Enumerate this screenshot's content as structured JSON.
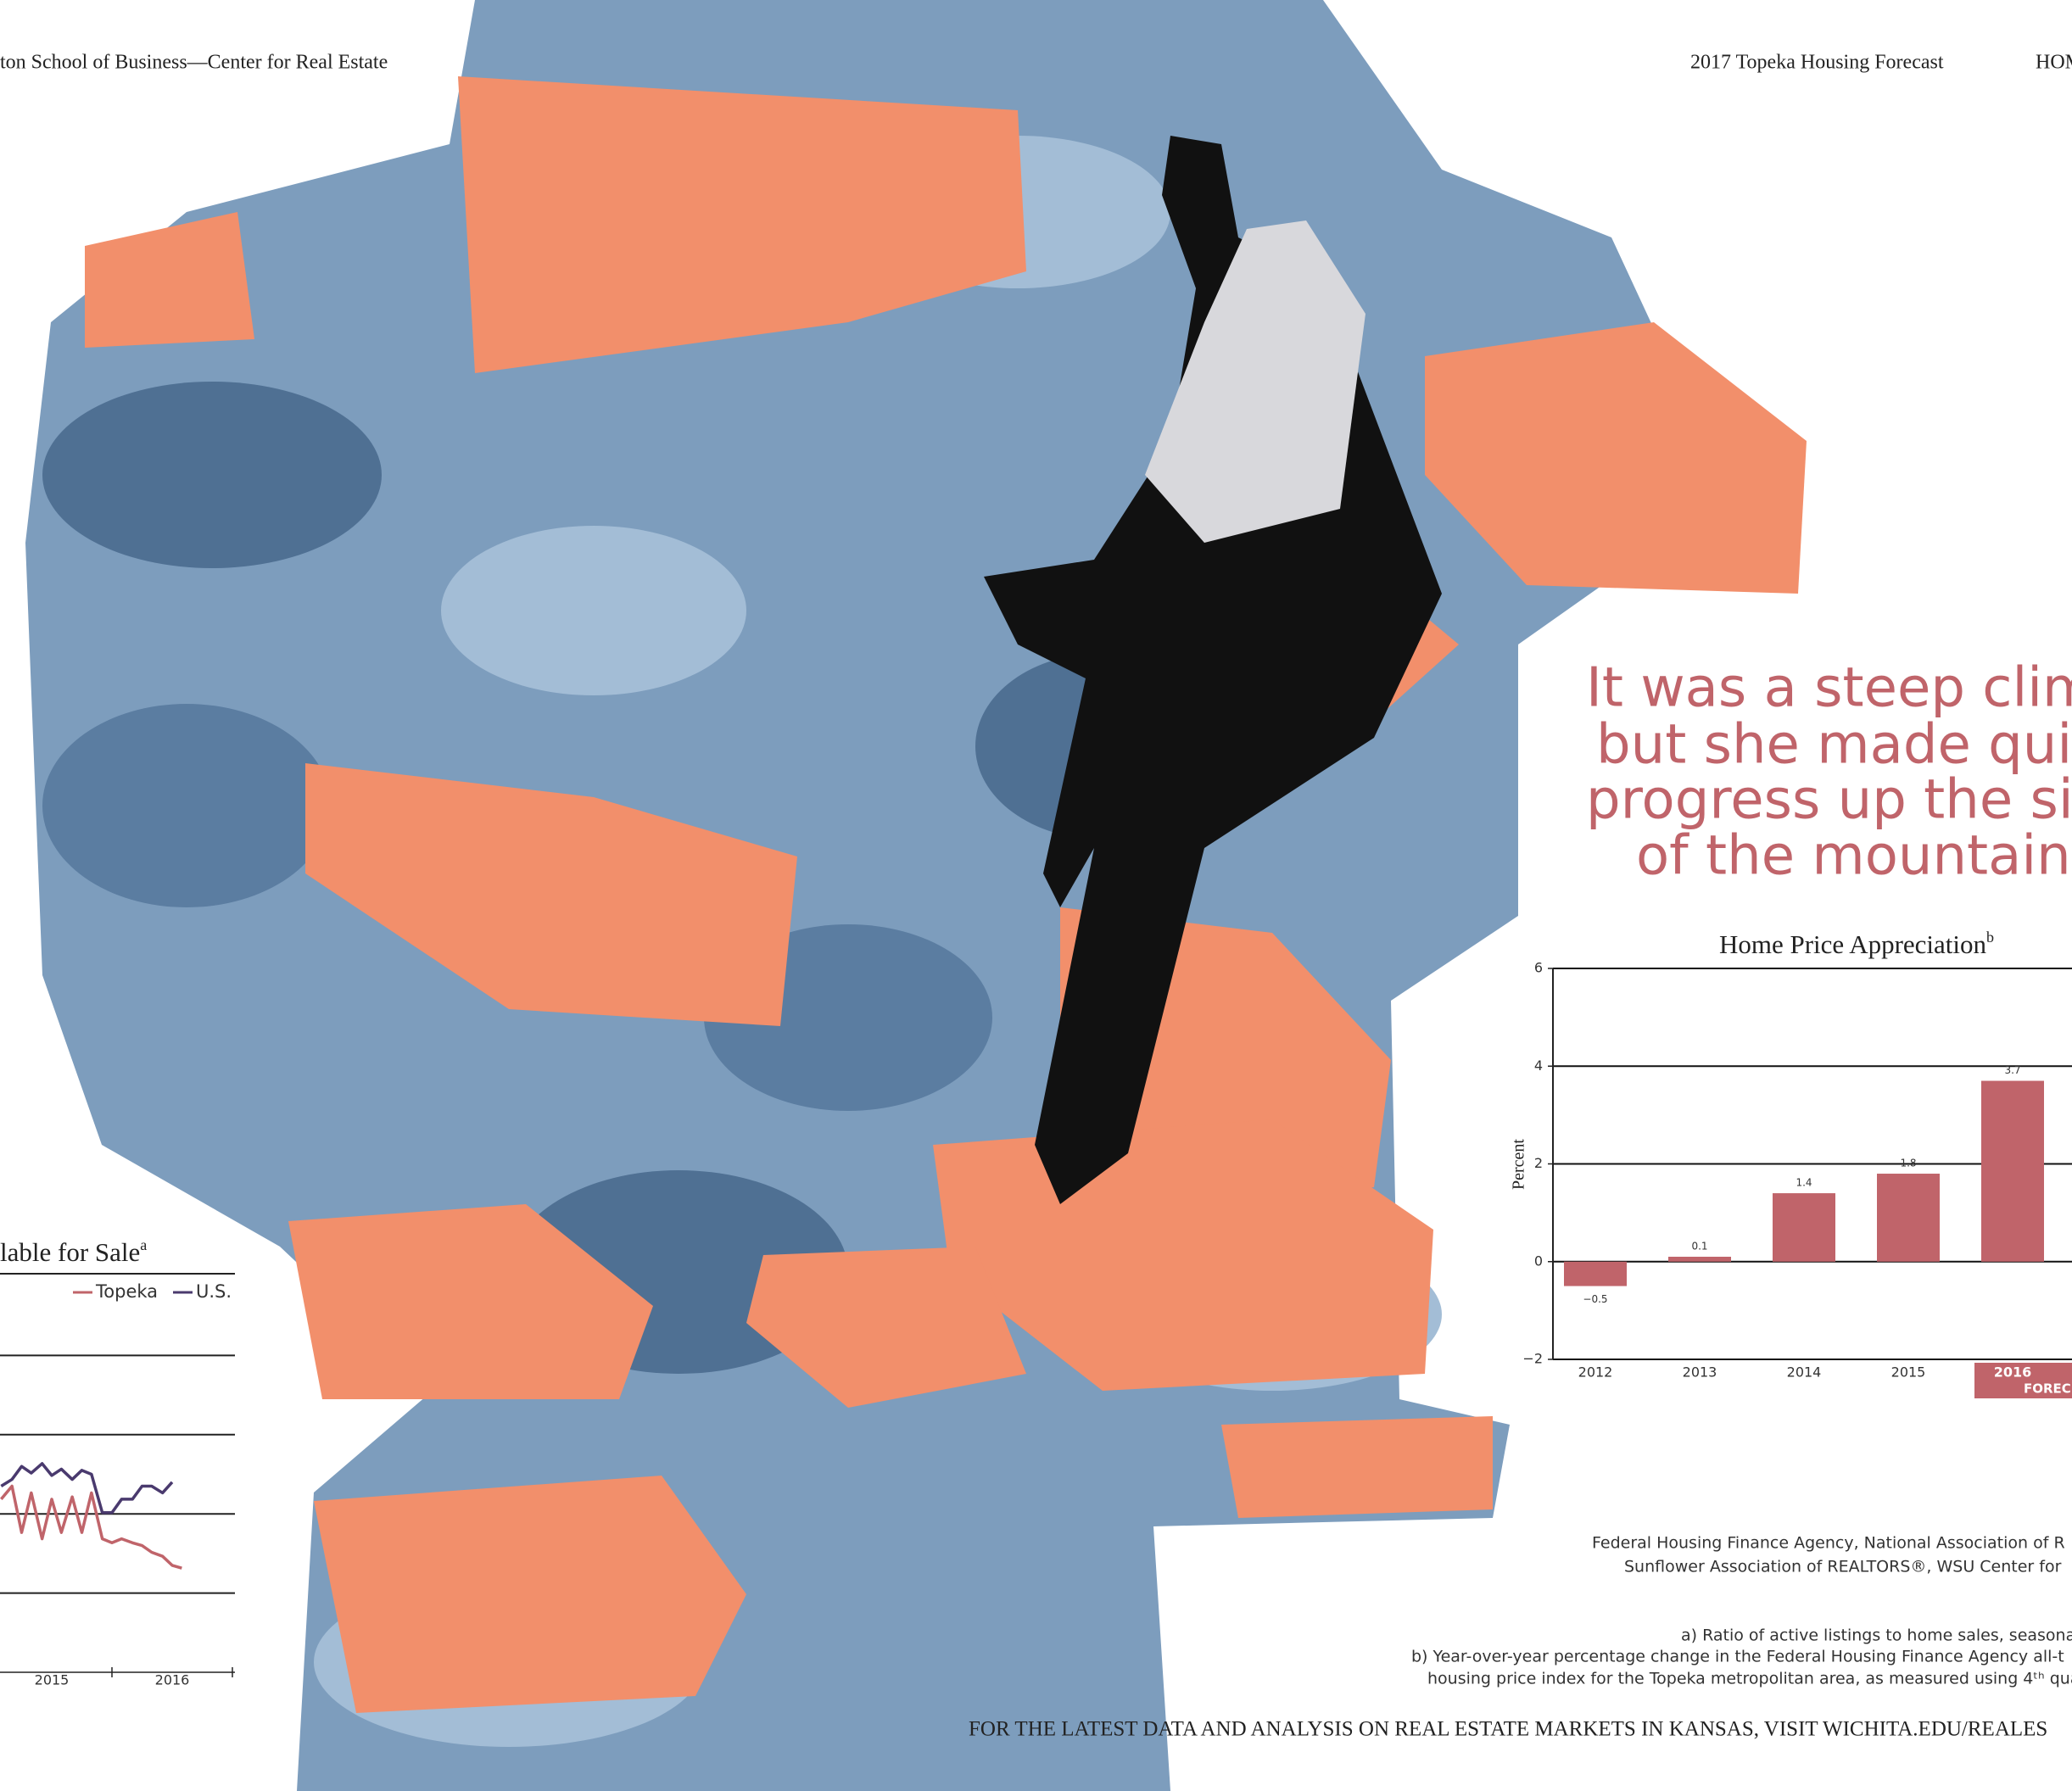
{
  "header": {
    "left": "ton School of Business—Center for Real Estate",
    "right": "2017 Topeka Housing Forecast",
    "page": "HOM"
  },
  "quote": {
    "lines": [
      "It was a steep clim",
      "but she made quic",
      "progress up the sid",
      "of the mountain."
    ]
  },
  "chart_data": [
    {
      "type": "line",
      "title": "lable for Sale",
      "title_sup": "a",
      "x": [
        2015.08,
        2015.17,
        2015.25,
        2015.33,
        2015.42,
        2015.5,
        2015.58,
        2015.67,
        2015.75,
        2015.83,
        2015.92,
        2016,
        2016.08,
        2016.17,
        2016.25,
        2016.33,
        2016.42,
        2016.5,
        2016.58
      ],
      "xlim": [
        2014,
        2017
      ],
      "xticks": [
        {
          "value": 2015.5,
          "label": "2015"
        },
        {
          "value": 2016.5,
          "label": "2016"
        }
      ],
      "ylim": [
        0,
        10
      ],
      "yticks": [
        2,
        4,
        6,
        8
      ],
      "grid": true,
      "series": [
        {
          "name": "Topeka",
          "color": "#c0646a",
          "values": [
            4.37,
            4.7,
            3.53,
            4.53,
            3.37,
            4.37,
            3.53,
            4.43,
            3.53,
            4.53,
            3.37,
            3.27,
            3.37,
            3.27,
            3.2,
            3.03,
            2.93,
            2.7,
            2.63
          ]
        },
        {
          "name": "U.S.",
          "color": "#4a3a6e",
          "values": [
            4.7,
            4.87,
            5.2,
            5.03,
            5.27,
            4.97,
            5.13,
            4.87,
            5.1,
            5.0,
            4.03,
            4.03,
            4.37,
            4.37,
            4.7,
            4.7,
            4.53,
            4.8,
            null
          ]
        }
      ]
    },
    {
      "type": "bar",
      "title": "Home Price Appreciation",
      "title_sup": "b",
      "y_label": "Percent",
      "categories": [
        "2012",
        "2013",
        "2014",
        "2015",
        "2016"
      ],
      "values": [
        -0.5,
        0.1,
        1.4,
        1.8,
        3.7
      ],
      "value_labels": [
        "−0.5",
        "0.1",
        "1.4",
        "1.8",
        "3.7"
      ],
      "color": "#c0646a",
      "ylim": [
        -2,
        6
      ],
      "yticks": [
        {
          "value": -2,
          "label": "−2"
        },
        0,
        2,
        4,
        6
      ],
      "grid": true,
      "highlight": {
        "category": 4,
        "label": "FOREC"
      }
    }
  ],
  "sources": {
    "lines": [
      "Federal Housing Finance Agency, National Association of R",
      "Sunflower Association of REALTORS®, WSU Center for"
    ]
  },
  "footnotes": {
    "lines": [
      "a) Ratio of active listings to home sales, seasonal",
      "b) Year-over-year percentage change in the Federal Housing Finance Agency all-t",
      "housing price index for the Topeka metropolitan area, as measured using 4ᵗʰ qua"
    ]
  },
  "footer": "FOR THE LATEST DATA AND ANALYSIS ON REAL ESTATE MARKETS IN KANSAS, VISIT WICHITA.EDU/REALES"
}
